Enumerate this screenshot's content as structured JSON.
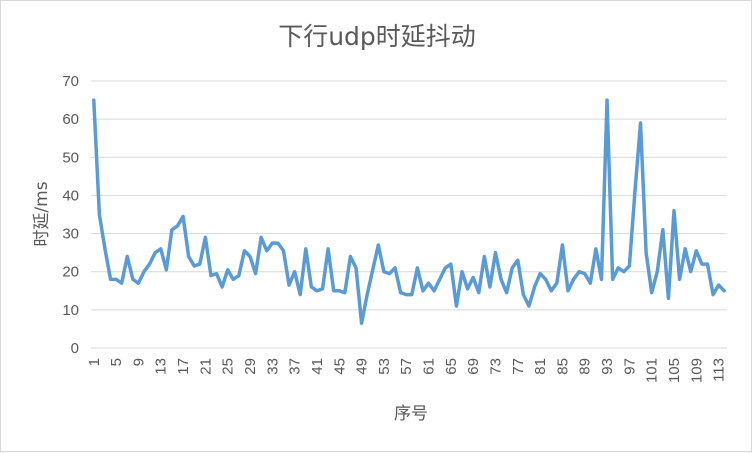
{
  "chart_data": {
    "type": "line",
    "title": "下行udp时延抖动",
    "xlabel": "序号",
    "ylabel": "时延/ms",
    "ylim": [
      0,
      70
    ],
    "yticks": [
      0,
      10,
      20,
      30,
      40,
      50,
      60,
      70
    ],
    "grid": true,
    "legend": "none",
    "line_color": "#5b9bd5",
    "x_tick_every": 4,
    "x": [
      1,
      2,
      3,
      4,
      5,
      6,
      7,
      8,
      9,
      10,
      11,
      12,
      13,
      14,
      15,
      16,
      17,
      18,
      19,
      20,
      21,
      22,
      23,
      24,
      25,
      26,
      27,
      28,
      29,
      30,
      31,
      32,
      33,
      34,
      35,
      36,
      37,
      38,
      39,
      40,
      41,
      42,
      43,
      44,
      45,
      46,
      47,
      48,
      49,
      50,
      51,
      52,
      53,
      54,
      55,
      56,
      57,
      58,
      59,
      60,
      61,
      62,
      63,
      64,
      65,
      66,
      67,
      68,
      69,
      70,
      71,
      72,
      73,
      74,
      75,
      76,
      77,
      78,
      79,
      80,
      81,
      82,
      83,
      84,
      85,
      86,
      87,
      88,
      89,
      90,
      91,
      92,
      93,
      94,
      95,
      96,
      97,
      98,
      99,
      100,
      101,
      102,
      103,
      104,
      105,
      106,
      107,
      108,
      109,
      110,
      111,
      112,
      113,
      114
    ],
    "series": [
      {
        "values": [
          65,
          35,
          26,
          18,
          18,
          17,
          24,
          18,
          17,
          20,
          22,
          25,
          26,
          20.5,
          31,
          32,
          34.5,
          24,
          21.5,
          22,
          29,
          19,
          19.5,
          16,
          20.5,
          18,
          19,
          25.5,
          24,
          19.5,
          29,
          25.5,
          27.5,
          27.5,
          25.5,
          16.5,
          20,
          14,
          26,
          16,
          15,
          15.5,
          26,
          15,
          15,
          14.5,
          24,
          21,
          6.5,
          14,
          20.5,
          27,
          20,
          19.5,
          21,
          14.5,
          14,
          14,
          21,
          15,
          17,
          15,
          18,
          21,
          22,
          11,
          20,
          15.5,
          18.5,
          14.5,
          24,
          16,
          25,
          18,
          14.5,
          21,
          23,
          14,
          11,
          16,
          19.5,
          18,
          15,
          17,
          27,
          15,
          18,
          20,
          19.5,
          17,
          26,
          18,
          65,
          18,
          21,
          20,
          21.5,
          41,
          59,
          25,
          14.5,
          20,
          31,
          13,
          36,
          18,
          26,
          20,
          25.5,
          22,
          22,
          14,
          16.5,
          15
        ]
      }
    ]
  }
}
